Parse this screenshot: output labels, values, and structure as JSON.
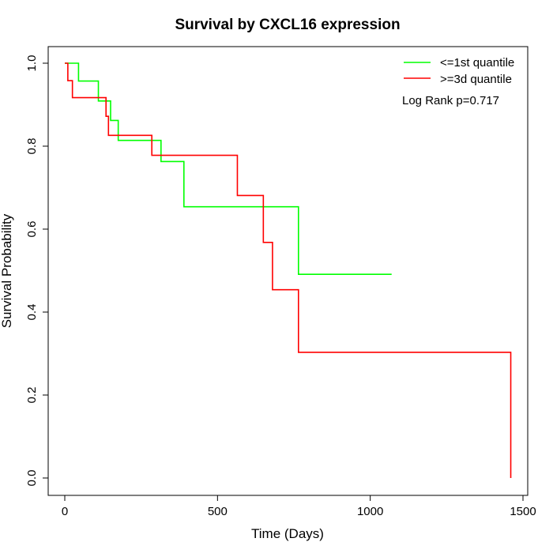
{
  "chart_data": {
    "type": "line",
    "title": "Survival by CXCL16 expression",
    "xlabel": "Time (Days)",
    "ylabel": "Survival Probability",
    "xlim": [
      0,
      1500
    ],
    "ylim": [
      0,
      1
    ],
    "x_ticks": [
      0,
      500,
      1000,
      1500
    ],
    "x_tick_labels": [
      "0",
      "500",
      "1000",
      "1500"
    ],
    "y_ticks": [
      0,
      0.2,
      0.4,
      0.6,
      0.8,
      1.0
    ],
    "y_tick_labels": [
      "0.0",
      "0.2",
      "0.4",
      "0.6",
      "0.8",
      "1.0"
    ],
    "grid": false,
    "legend_position": "top-right",
    "annotation": "Log Rank p=0.717",
    "series": [
      {
        "name": "<=1st quantile",
        "color": "#00ff00",
        "step": true,
        "x": [
          0,
          45,
          110,
          150,
          175,
          315,
          390,
          765,
          1070
        ],
        "y": [
          1.0,
          0.957,
          0.909,
          0.862,
          0.814,
          0.763,
          0.654,
          0.491,
          0.491
        ]
      },
      {
        "name": ">=3d quantile",
        "color": "#ff0000",
        "step": true,
        "x": [
          0,
          10,
          25,
          135,
          143,
          285,
          565,
          650,
          680,
          765,
          1460,
          1460
        ],
        "y": [
          1.0,
          0.958,
          0.917,
          0.872,
          0.826,
          0.778,
          0.681,
          0.568,
          0.454,
          0.303,
          0.303,
          0.0
        ]
      }
    ]
  }
}
